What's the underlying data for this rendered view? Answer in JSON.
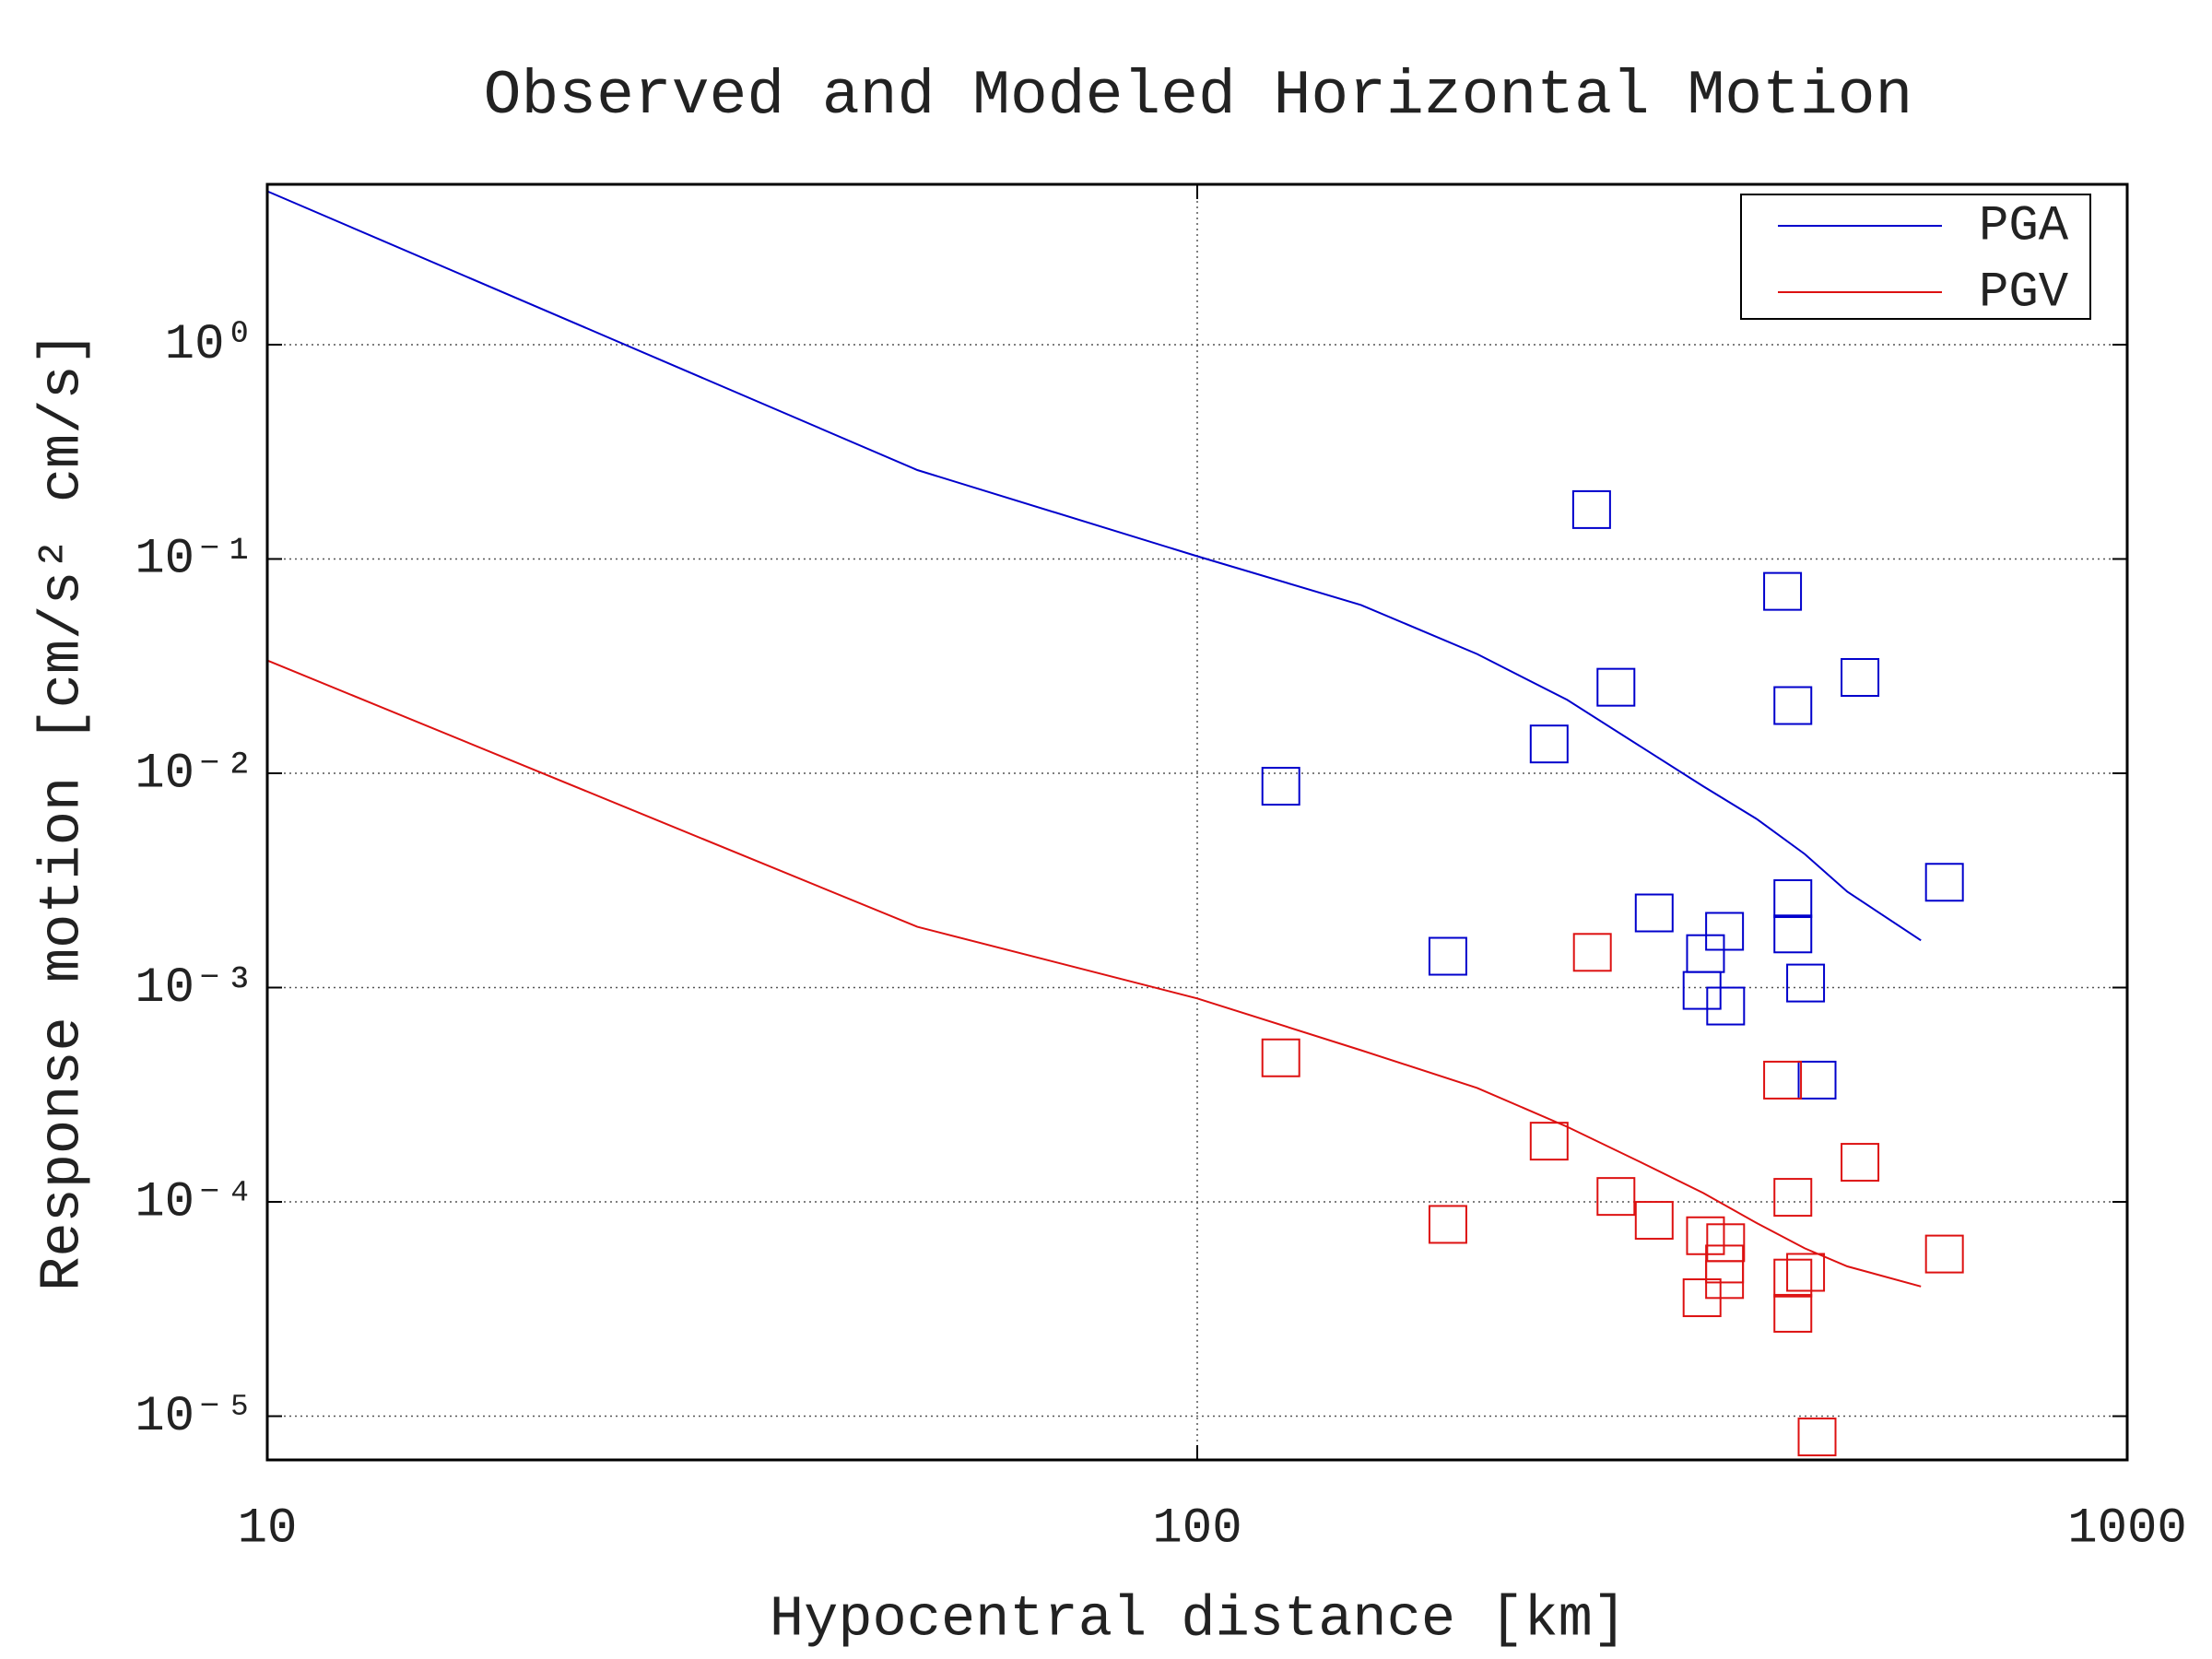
{
  "chart_data": {
    "type": "line",
    "title": "Observed and Modeled Horizontal Motion",
    "x_label": "Hypocentral distance [km]",
    "y_label": "Response motion [cm/s²  cm/s]",
    "x_log": true,
    "y_log": true,
    "grid": true,
    "legend": "upper right",
    "xlim": [
      10,
      1000
    ],
    "xticks": [
      10,
      100,
      1000
    ],
    "ylim": [
      6.25e-06,
      5.6
    ],
    "yticks": [
      {
        "value": 1,
        "label": "10⁰"
      },
      {
        "value": 0.1,
        "label": "10⁻¹"
      },
      {
        "value": 0.01,
        "label": "10⁻²"
      },
      {
        "value": 0.001,
        "label": "10⁻³"
      },
      {
        "value": 0.0001,
        "label": "10⁻⁴"
      },
      {
        "value": 1e-05,
        "label": "10⁻⁵"
      }
    ],
    "series": [
      {
        "name": "PGA",
        "color": "#0000cc",
        "x": [
          10,
          50,
          100,
          150,
          200,
          250,
          300,
          350,
          400,
          450,
          500,
          600
        ],
        "values": [
          5.2,
          0.26,
          0.103,
          0.061,
          0.036,
          0.022,
          0.0133,
          0.0087,
          0.0061,
          0.0042,
          0.0028,
          0.00166
        ],
        "observed_x": [
          265.5,
          426,
          516,
          282,
          437,
          239,
          123,
          636,
          310,
          437,
          369,
          437,
          352,
          186,
          451,
          349,
          370,
          464
        ],
        "observed": [
          0.17,
          0.0706,
          0.028,
          0.0252,
          0.0207,
          0.0137,
          0.0087,
          0.0031,
          0.00223,
          0.0026,
          0.00183,
          0.00178,
          0.00144,
          0.0014,
          0.00105,
          0.00097,
          0.00082,
          0.00037
        ]
      },
      {
        "name": "PGV",
        "color": "#dd1111",
        "x": [
          10,
          50,
          100,
          150,
          200,
          250,
          300,
          350,
          400,
          450,
          500,
          600
        ],
        "values": [
          0.0336,
          0.00192,
          0.00089,
          0.00051,
          0.00034,
          0.000224,
          0.000153,
          0.00011,
          7.94e-05,
          6.07e-05,
          5e-05,
          4.03e-05
        ],
        "observed_x": [
          123,
          266,
          426,
          239,
          516,
          282,
          437,
          310,
          186,
          352,
          370,
          369,
          636,
          451,
          437,
          369,
          349,
          437,
          464
        ],
        "observed": [
          0.00047,
          0.00146,
          0.00037,
          0.000192,
          0.000153,
          0.000106,
          0.000105,
          8.2e-05,
          7.85e-05,
          6.95e-05,
          6.45e-05,
          5.13e-05,
          5.71e-05,
          4.69e-05,
          4.41e-05,
          4.34e-05,
          3.57e-05,
          3.02e-05,
          8e-06
        ]
      }
    ]
  }
}
